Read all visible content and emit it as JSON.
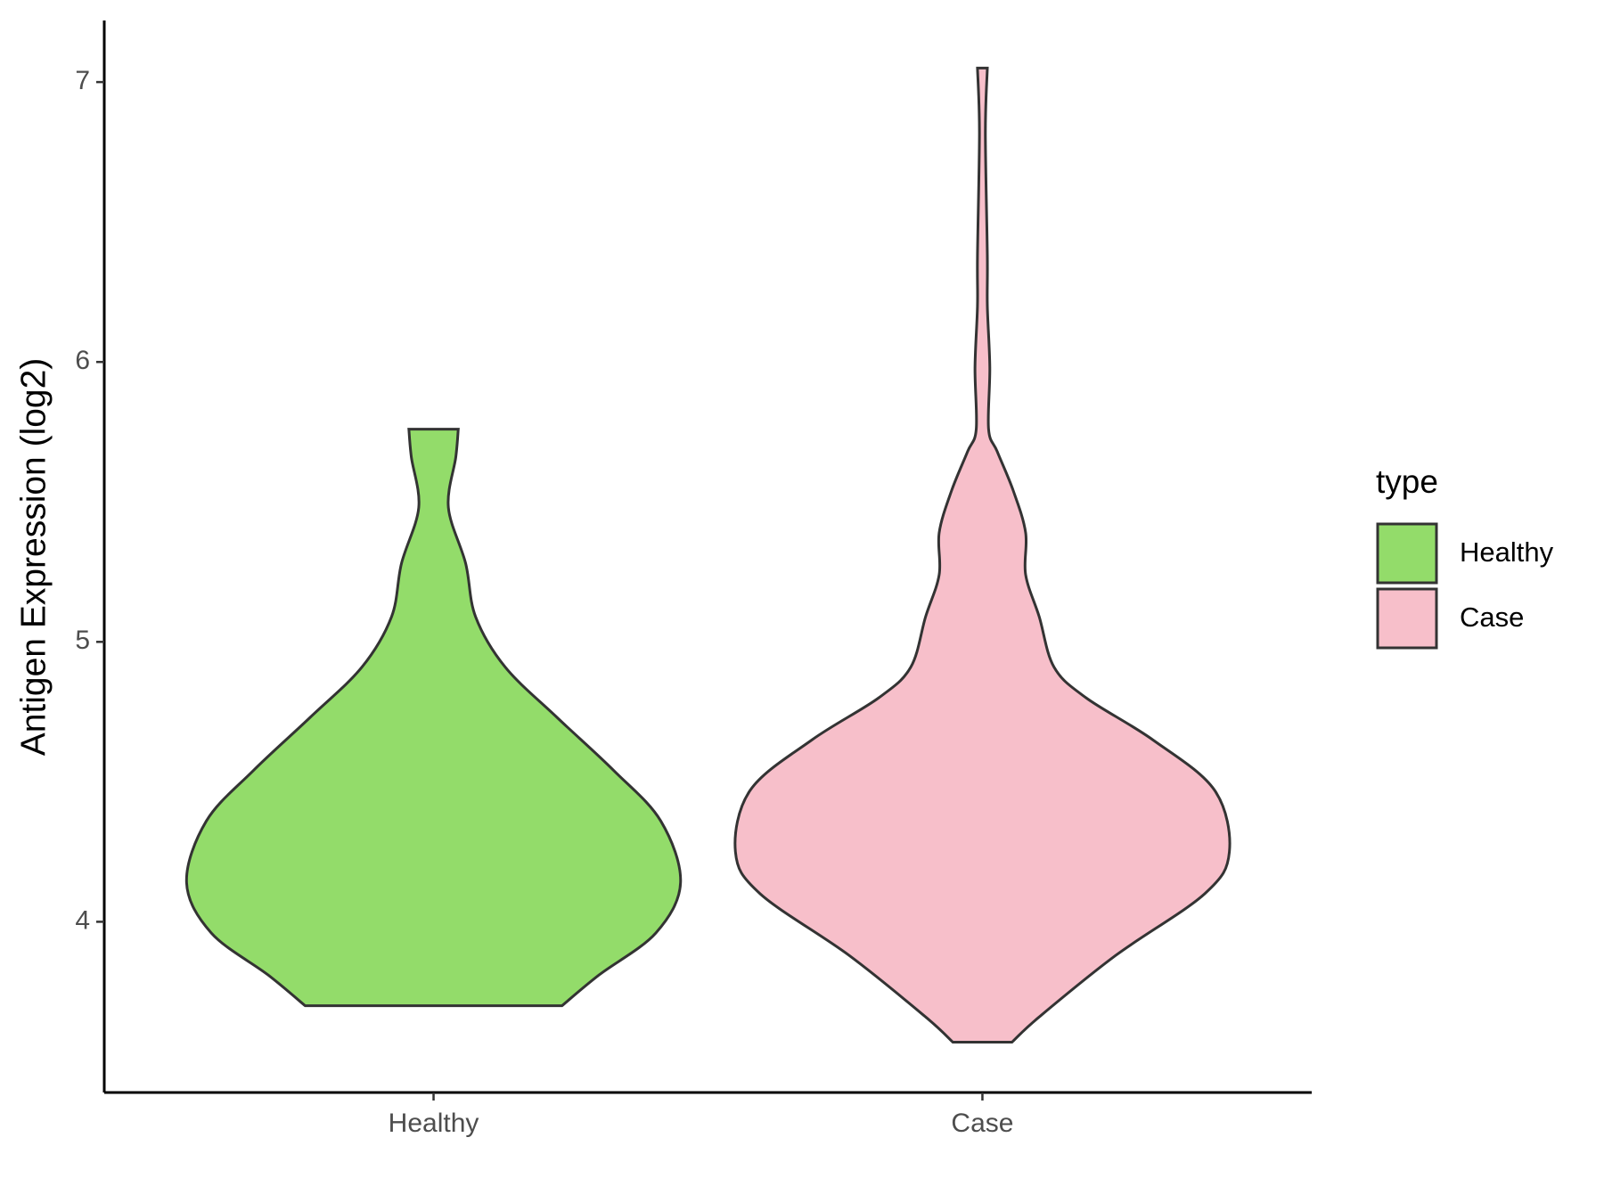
{
  "chart_data": {
    "type": "violin",
    "y_label": "Antigen Expression (log2)",
    "categories": [
      "Healthy",
      "Case"
    ],
    "ylim": [
      3.39,
      7.22
    ],
    "yticks": [
      4,
      5,
      6,
      7
    ],
    "legend_title": "type",
    "legend_position": "right",
    "series": [
      {
        "name": "Healthy",
        "color": "#93dc6a",
        "y": [
          5.76,
          5.66,
          5.48,
          5.28,
          5.09,
          4.91,
          4.73,
          4.54,
          4.36,
          4.14,
          3.96,
          3.81,
          3.7
        ],
        "density": [
          0.1,
          0.09,
          0.06,
          0.13,
          0.17,
          0.29,
          0.5,
          0.73,
          0.92,
          1.0,
          0.9,
          0.67,
          0.52
        ]
      },
      {
        "name": "Case",
        "color": "#f7bfca",
        "y": [
          7.05,
          6.82,
          6.38,
          6.2,
          5.98,
          5.76,
          5.68,
          5.54,
          5.39,
          5.24,
          5.09,
          4.91,
          4.8,
          4.65,
          4.47,
          4.25,
          4.1,
          3.88,
          3.66,
          3.57
        ],
        "density": [
          0.02,
          0.012,
          0.02,
          0.02,
          0.03,
          0.025,
          0.06,
          0.125,
          0.175,
          0.175,
          0.23,
          0.29,
          0.42,
          0.69,
          0.94,
          1.0,
          0.9,
          0.54,
          0.23,
          0.12
        ]
      }
    ]
  }
}
